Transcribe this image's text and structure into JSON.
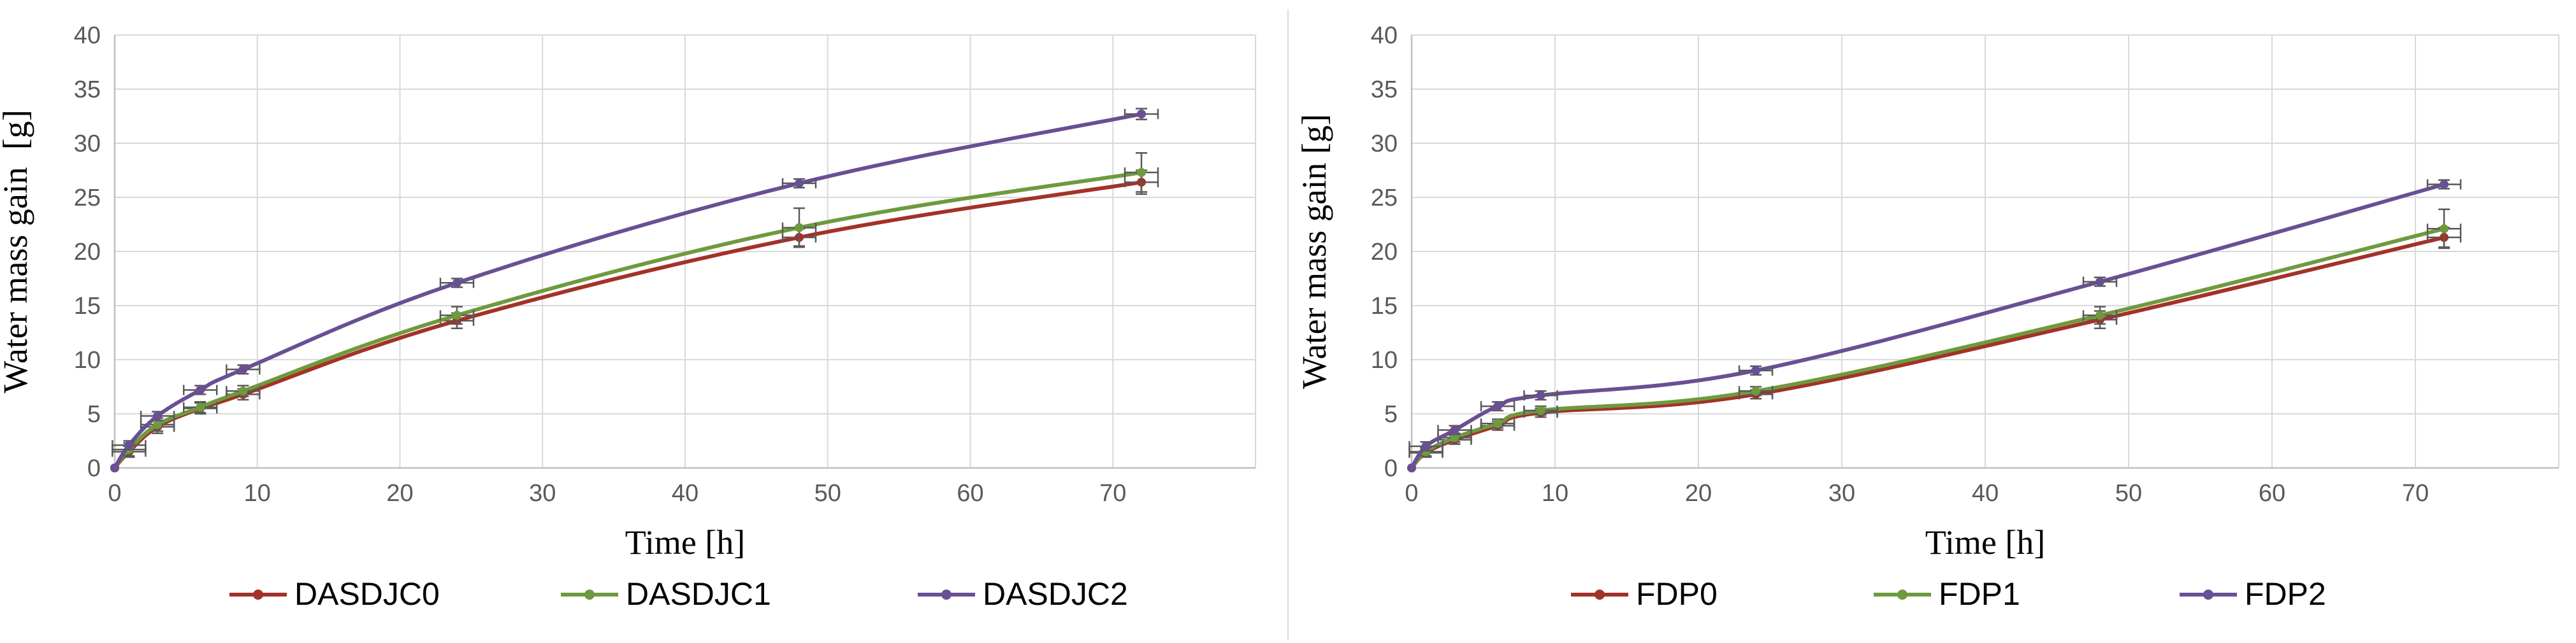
{
  "chart_data": [
    {
      "type": "line",
      "title": "",
      "xlabel": "Time [h]",
      "ylabel": "Water mass gain  [g]",
      "xlim": [
        0,
        80
      ],
      "ylim": [
        0,
        40
      ],
      "xticks": [
        0,
        10,
        20,
        30,
        40,
        50,
        60,
        70
      ],
      "yticks": [
        0,
        5,
        10,
        15,
        20,
        25,
        30,
        35,
        40
      ],
      "grid": true,
      "legend_position": "bottom",
      "series": [
        {
          "name": "DASDJC0",
          "color": "#a33228",
          "x": [
            0,
            1,
            3,
            6,
            9,
            24,
            48,
            72
          ],
          "y": [
            0,
            1.5,
            3.8,
            5.5,
            6.8,
            13.6,
            21.3,
            26.4
          ],
          "yerr": [
            0,
            0.5,
            0.6,
            0.5,
            0.5,
            0.7,
            0.8,
            1.1
          ]
        },
        {
          "name": "DASDJC1",
          "color": "#6e9a3e",
          "x": [
            0,
            1,
            3,
            6,
            9,
            24,
            48,
            72
          ],
          "y": [
            0,
            1.7,
            4.0,
            5.6,
            7.1,
            14.1,
            22.2,
            27.3
          ],
          "yerr": [
            0,
            0.6,
            0.6,
            0.5,
            0.5,
            0.8,
            1.8,
            1.8
          ]
        },
        {
          "name": "DASDJC2",
          "color": "#6a4f94",
          "x": [
            0,
            1,
            3,
            6,
            9,
            24,
            48,
            72
          ],
          "y": [
            0,
            2.1,
            4.8,
            7.2,
            9.1,
            17.1,
            26.3,
            32.7
          ],
          "yerr": [
            0,
            0.4,
            0.4,
            0.4,
            0.4,
            0.4,
            0.4,
            0.5
          ]
        }
      ]
    },
    {
      "type": "line",
      "title": "",
      "xlabel": "Time [h]",
      "ylabel": "Water mass gain [g]",
      "xlim": [
        0,
        80
      ],
      "ylim": [
        0,
        40
      ],
      "xticks": [
        0,
        10,
        20,
        30,
        40,
        50,
        60,
        70
      ],
      "yticks": [
        0,
        5,
        10,
        15,
        20,
        25,
        30,
        35,
        40
      ],
      "grid": true,
      "legend_position": "bottom",
      "series": [
        {
          "name": "FDP0",
          "color": "#a33228",
          "x": [
            0,
            1,
            3,
            6,
            9,
            24,
            48,
            72
          ],
          "y": [
            0,
            1.4,
            2.6,
            3.9,
            5.1,
            6.8,
            13.7,
            21.3
          ],
          "yerr": [
            0,
            0.4,
            0.4,
            0.4,
            0.4,
            0.4,
            0.8,
            0.9
          ]
        },
        {
          "name": "FDP1",
          "color": "#6e9a3e",
          "x": [
            0,
            1,
            3,
            6,
            9,
            24,
            48,
            72
          ],
          "y": [
            0,
            1.5,
            2.8,
            4.1,
            5.3,
            7.1,
            14.1,
            22.1
          ],
          "yerr": [
            0,
            0.4,
            0.4,
            0.4,
            0.4,
            0.4,
            0.8,
            1.8
          ]
        },
        {
          "name": "FDP2",
          "color": "#6a4f94",
          "x": [
            0,
            1,
            3,
            6,
            9,
            24,
            48,
            72
          ],
          "y": [
            0,
            2.0,
            3.5,
            5.7,
            6.7,
            9.0,
            17.2,
            26.2
          ],
          "yerr": [
            0,
            0.4,
            0.4,
            0.4,
            0.4,
            0.4,
            0.4,
            0.4
          ]
        }
      ]
    }
  ]
}
